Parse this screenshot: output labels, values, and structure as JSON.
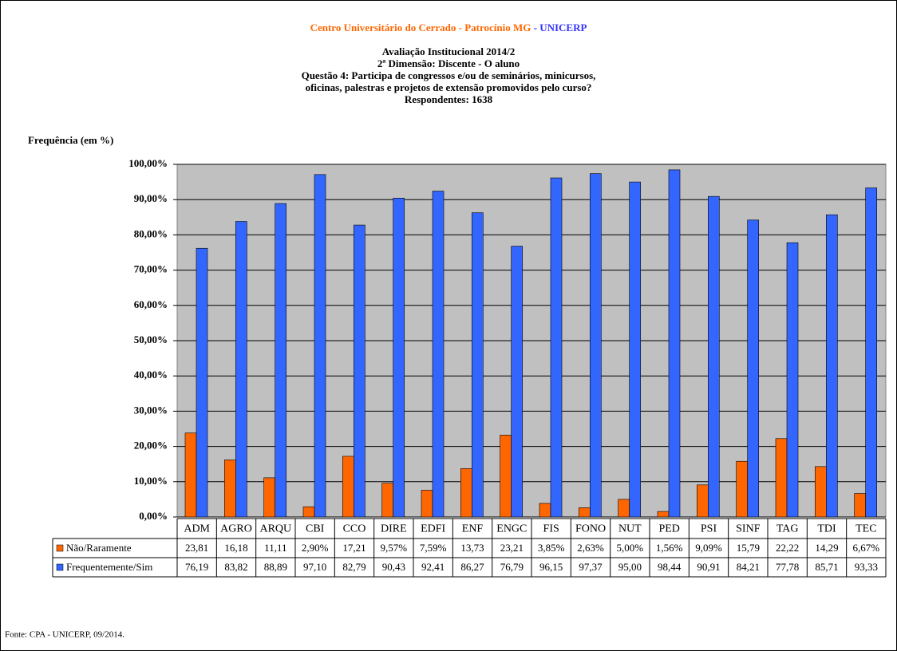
{
  "chart_data": {
    "type": "bar",
    "title": "Centro Universitário do Cerrado - Patrocínio MG",
    "title_suffix": "- UNICERP",
    "subtitle": [
      "Avaliação Institucional 2014/2",
      "2ª Dimensão: Discente - O aluno",
      "Questão 4: Participa de congressos e/ou de seminários, minicursos,",
      "oficinas, palestras e projetos de extensão promovidos pelo curso?",
      "Respondentes: 1638"
    ],
    "y_label": "Frequência (em %)",
    "source": "Fonte: CPA - UNICERP, 09/2014.",
    "categories": [
      "ADM",
      "AGRO",
      "ARQU",
      "CBI",
      "CCO",
      "DIRE",
      "EDFI",
      "ENF",
      "ENGC",
      "FIS",
      "FONO",
      "NUT",
      "PED",
      "PSI",
      "SINF",
      "TAG",
      "TDI",
      "TEC"
    ],
    "series": [
      {
        "name": "Não/Raramente",
        "color": "#ff6600",
        "values": [
          23.81,
          16.18,
          11.11,
          2.9,
          17.21,
          9.57,
          7.59,
          13.73,
          23.21,
          3.85,
          2.63,
          5.0,
          1.56,
          9.09,
          15.79,
          22.22,
          14.29,
          6.67
        ],
        "value_labels": [
          "23,81",
          "16,18",
          "11,11",
          "2,90%",
          "17,21",
          "9,57%",
          "7,59%",
          "13,73",
          "23,21",
          "3,85%",
          "2,63%",
          "5,00%",
          "1,56%",
          "9,09%",
          "15,79",
          "22,22",
          "14,29",
          "6,67%"
        ]
      },
      {
        "name": "Frequentemente/Sim",
        "color": "#3366ff",
        "values": [
          76.19,
          83.82,
          88.89,
          97.1,
          82.79,
          90.43,
          92.41,
          86.27,
          76.79,
          96.15,
          97.37,
          95.0,
          98.44,
          90.91,
          84.21,
          77.78,
          85.71,
          93.33
        ],
        "value_labels": [
          "76,19",
          "83,82",
          "88,89",
          "97,10",
          "82,79",
          "90,43",
          "92,41",
          "86,27",
          "76,79",
          "96,15",
          "97,37",
          "95,00",
          "98,44",
          "90,91",
          "84,21",
          "77,78",
          "85,71",
          "93,33"
        ]
      }
    ],
    "ylim": [
      0,
      100
    ],
    "yticks": [
      {
        "value": 0,
        "label": "0,00%"
      },
      {
        "value": 10,
        "label": "10,00%"
      },
      {
        "value": 20,
        "label": "20,00%"
      },
      {
        "value": 30,
        "label": "30,00%"
      },
      {
        "value": 40,
        "label": "40,00%"
      },
      {
        "value": 50,
        "label": "50,00%"
      },
      {
        "value": 60,
        "label": "60,00%"
      },
      {
        "value": 70,
        "label": "70,00%"
      },
      {
        "value": 80,
        "label": "80,00%"
      },
      {
        "value": 90,
        "label": "90,00%"
      },
      {
        "value": 100,
        "label": "100,00%"
      }
    ],
    "grid": true
  }
}
